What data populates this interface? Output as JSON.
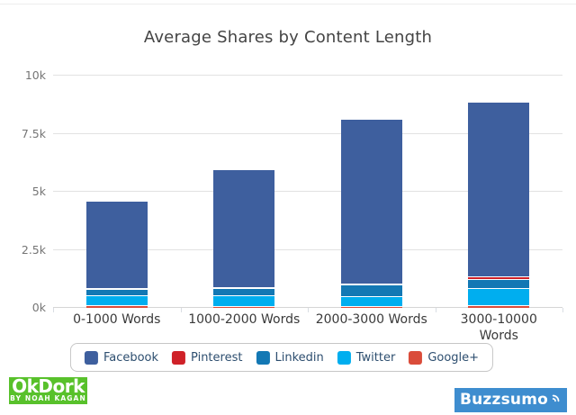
{
  "chart_data": {
    "type": "bar",
    "stacked": true,
    "title": "Average Shares by Content Length",
    "categories": [
      "0-1000 Words",
      "1000-2000 Words",
      "2000-3000 Words",
      "3000-10000 Words"
    ],
    "xlabels_display": [
      [
        "0-1000 Words"
      ],
      [
        "1000-2000 Words"
      ],
      [
        "2000-3000 Words"
      ],
      [
        "3000-10000",
        "Words"
      ]
    ],
    "series": [
      {
        "name": "Facebook",
        "color": "#3e5f9e",
        "values": [
          3750,
          5100,
          7100,
          7500
        ]
      },
      {
        "name": "Pinterest",
        "color": "#cf2128",
        "values": [
          30,
          30,
          40,
          120
        ]
      },
      {
        "name": "Linkedin",
        "color": "#1378b4",
        "values": [
          290,
          290,
          480,
          380
        ]
      },
      {
        "name": "Twitter",
        "color": "#00aeef",
        "values": [
          430,
          480,
          440,
          750
        ]
      },
      {
        "name": "Google+",
        "color": "#da4c3a",
        "values": [
          100,
          80,
          80,
          110
        ]
      }
    ],
    "stack_bottom_to_top": [
      "Google+",
      "Twitter",
      "Linkedin",
      "Pinterest",
      "Facebook"
    ],
    "totals_approx": [
      4600,
      5980,
      8140,
      8860
    ],
    "ylim": [
      0,
      10000
    ],
    "yticks": {
      "values": [
        0,
        2500,
        5000,
        7500,
        10000
      ],
      "labels": [
        "0k",
        "2.5k",
        "5k",
        "7.5k",
        "10k"
      ]
    },
    "grid": "horizontal",
    "legend": {
      "position": "bottom",
      "labels": [
        "Facebook",
        "Pinterest",
        "Linkedin",
        "Twitter",
        "Google+"
      ]
    }
  },
  "branding": {
    "okdork": {
      "title": "OkDork",
      "subtitle": "BY NOAH KAGAN",
      "bg_color": "#58c12b",
      "text_color": "#ffffff"
    },
    "buzzsumo": {
      "text": "Buzzsumo",
      "bg_color": "#3e8dcf",
      "text_color": "#ffffff"
    }
  }
}
